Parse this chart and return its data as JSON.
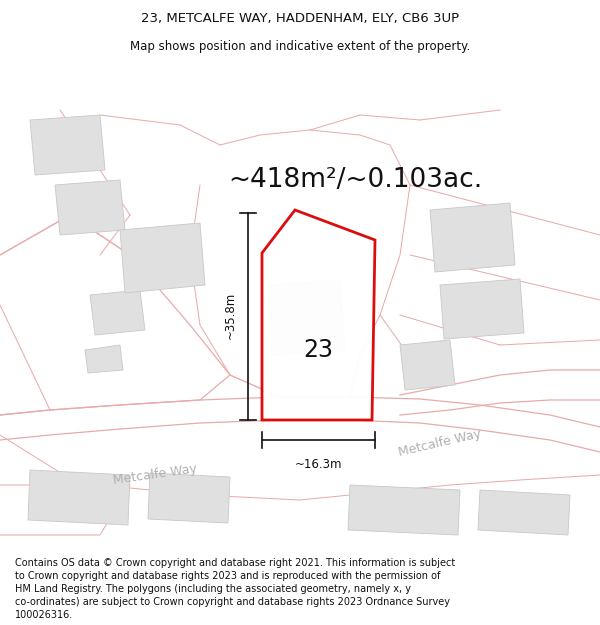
{
  "title_line1": "23, METCALFE WAY, HADDENHAM, ELY, CB6 3UP",
  "title_line2": "Map shows position and indicative extent of the property.",
  "area_text": "~418m²/~0.103ac.",
  "dim_height": "~35.8m",
  "dim_width": "~16.3m",
  "label_number": "23",
  "road_name_left": "Metcalfe Way",
  "road_name_right": "Metcalfe Way",
  "footer_lines": [
    "Contains OS data © Crown copyright and database right 2021. This information is subject",
    "to Crown copyright and database rights 2023 and is reproduced with the permission of",
    "HM Land Registry. The polygons (including the associated geometry, namely x, y",
    "co-ordinates) are subject to Crown copyright and database rights 2023 Ordnance Survey",
    "100026316."
  ],
  "map_bg": "#f8f8f8",
  "road_color": "#e8aaaa",
  "building_color": "#e0e0e0",
  "building_edge": "#c8c8c8",
  "property_color": "#dd0000",
  "dim_line_color": "#111111",
  "title_fontsize": 9.5,
  "subtitle_fontsize": 8.5,
  "area_fontsize": 19,
  "label_fontsize": 17,
  "road_fontsize": 9,
  "footer_fontsize": 7.0,
  "road_lw": 0.9,
  "property_lw": 2.0
}
